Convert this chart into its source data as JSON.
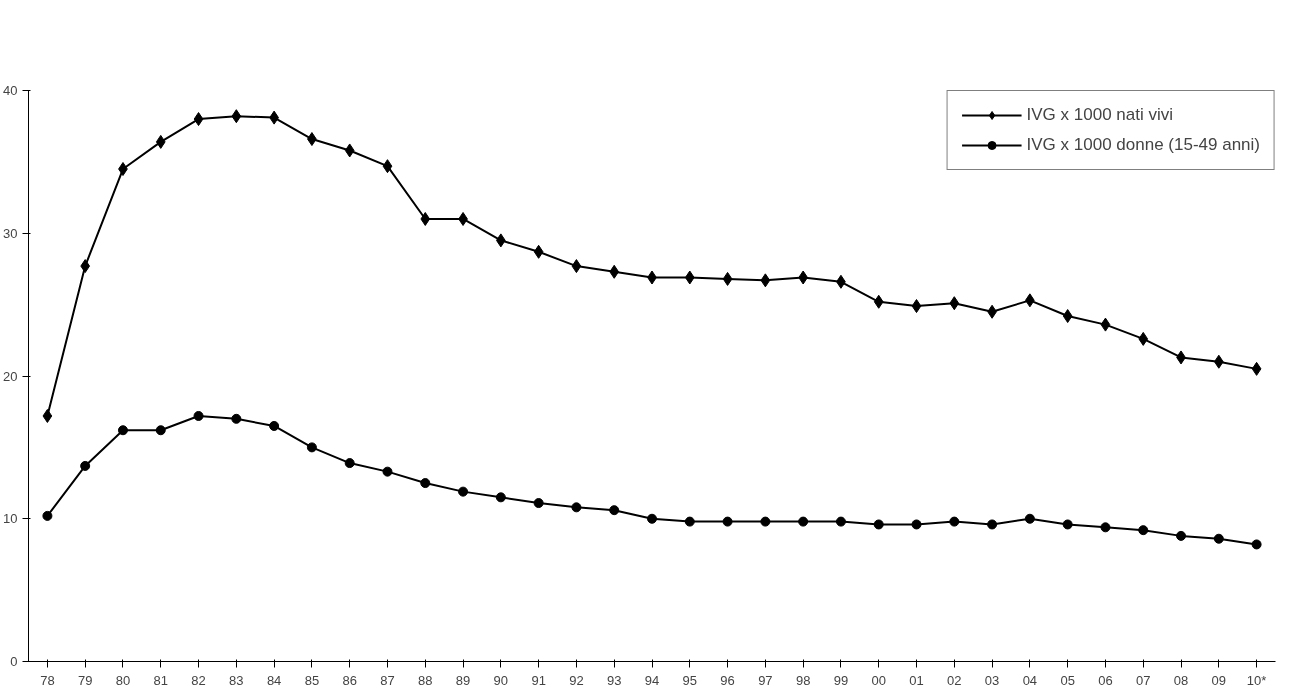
{
  "chart_data": {
    "type": "line",
    "categories": [
      "78",
      "79",
      "80",
      "81",
      "82",
      "83",
      "84",
      "85",
      "86",
      "87",
      "88",
      "89",
      "90",
      "91",
      "92",
      "93",
      "94",
      "95",
      "96",
      "97",
      "98",
      "99",
      "00",
      "01",
      "02",
      "03",
      "04",
      "05",
      "06",
      "07",
      "08",
      "09",
      "10*"
    ],
    "series": [
      {
        "name": "IVG x 1000 nati vivi",
        "color": "#000000",
        "marker": "diamond",
        "values": [
          17.2,
          27.7,
          34.5,
          36.4,
          38.0,
          38.2,
          38.1,
          36.6,
          35.8,
          34.7,
          31.0,
          31.0,
          29.5,
          28.7,
          27.7,
          27.3,
          26.9,
          26.9,
          26.8,
          26.7,
          26.9,
          26.6,
          25.2,
          24.9,
          25.1,
          24.5,
          25.3,
          24.2,
          23.6,
          22.6,
          21.3,
          21.0,
          20.5
        ]
      },
      {
        "name": "IVG x 1000 donne (15-49 anni)",
        "color": "#000000",
        "marker": "circle",
        "values": [
          10.2,
          13.7,
          16.2,
          16.2,
          17.2,
          17.0,
          16.5,
          15.0,
          13.9,
          13.3,
          12.5,
          11.9,
          11.5,
          11.1,
          10.8,
          10.6,
          10.0,
          9.8,
          9.8,
          9.8,
          9.8,
          9.8,
          9.6,
          9.6,
          9.8,
          9.6,
          10.0,
          9.6,
          9.4,
          9.2,
          8.8,
          8.6,
          8.2
        ]
      }
    ],
    "ylim": [
      0,
      40
    ],
    "yticks": [
      0,
      10,
      20,
      30,
      40
    ],
    "grid": false,
    "legend": "top right",
    "line_style": "solid"
  }
}
